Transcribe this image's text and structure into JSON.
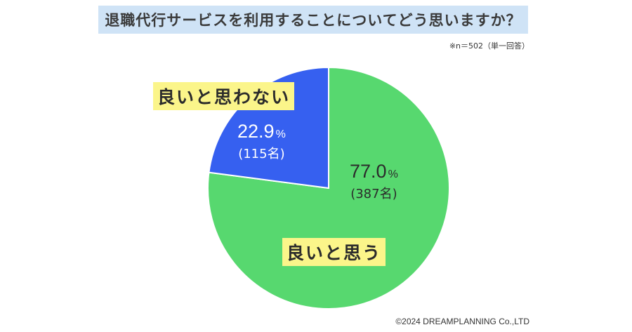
{
  "title": "退職代行サービスを利用することについてどう思いますか？",
  "note": "※n＝502（単一回答）",
  "credit": "©2024 DREAMPLANNING Co.,LTD",
  "chart_data": {
    "type": "pie",
    "n": 502,
    "slices": [
      {
        "label": "良いと思う",
        "value": 77.0,
        "value_label": "77.0",
        "unit": "%",
        "count_label": "(387名)",
        "color": "#57d86f"
      },
      {
        "label": "良いと思わない",
        "value": 22.9,
        "value_label": "22.9",
        "unit": "%",
        "count_label": "(115名)",
        "color": "#3660f0"
      }
    ]
  }
}
